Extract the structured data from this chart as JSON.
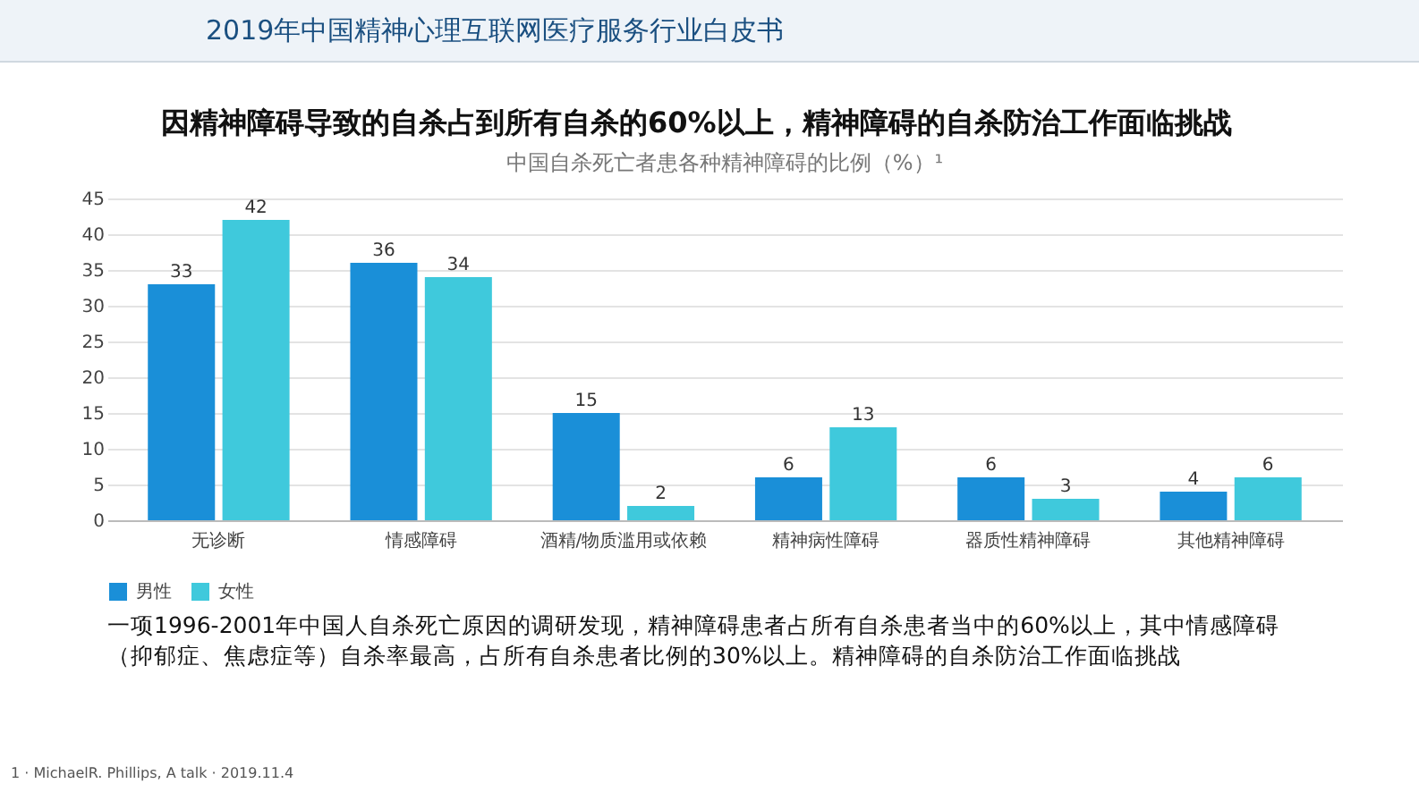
{
  "chart_data": {
    "type": "bar",
    "title": "因精神障碍导致的自杀占到所有自杀的60%以上，精神障碍的自杀防治工作面临挑战",
    "subtitle": "中国自杀死亡者患各种精神障碍的比例（%）¹",
    "annotations": [
      "2019年中国精神心理互联网医疗服务行业白皮书",
      "一项1996-2001年中国人自杀死亡原因的调研发现，精神障碍患者占所有自杀患者当中的60%以上，其中情感障碍（抑郁症、焦虑症等）自杀率最高，占所有自杀患者比例的30%以上。精神障碍的自杀防治工作面临挑战",
      "1 · MichaelR. Phillips, A talk · 2019.11.4"
    ],
    "categories": [
      "无诊断",
      "情感障碍",
      "酒精/物质滥用或依赖",
      "精神病性障碍",
      "器质性精神障碍",
      "其他精神障碍"
    ],
    "series": [
      {
        "name": "男性",
        "color": "#1a8fd8",
        "values": [
          33,
          36,
          15,
          6,
          6,
          4
        ]
      },
      {
        "name": "女性",
        "color": "#3fc9dc",
        "values": [
          42,
          34,
          2,
          13,
          3,
          6
        ]
      }
    ],
    "ylim": [
      0,
      45
    ],
    "yticks": [
      0,
      5,
      10,
      15,
      20,
      25,
      30,
      35,
      40,
      45
    ],
    "grid": "y",
    "legend": "bottom",
    "data_labels": true
  }
}
